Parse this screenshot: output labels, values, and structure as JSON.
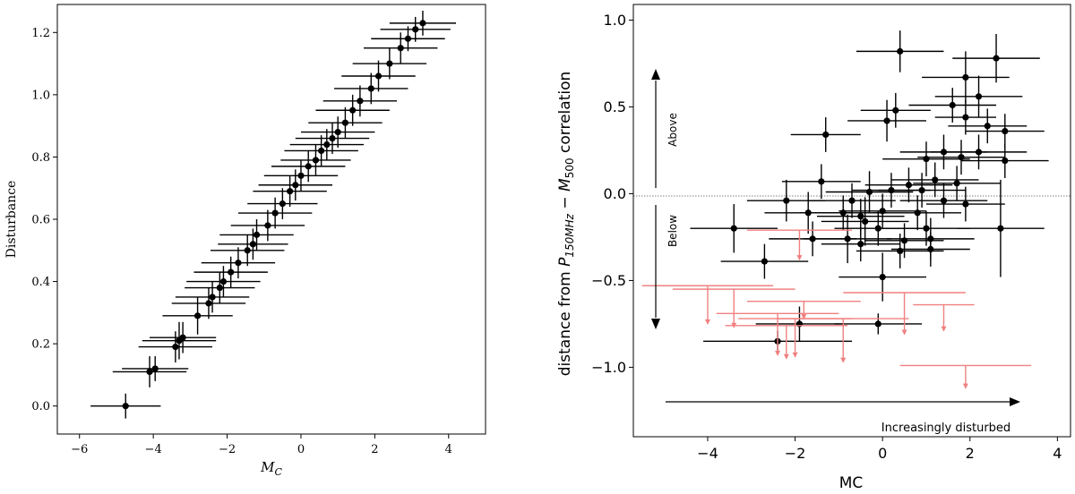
{
  "chart_data": [
    {
      "type": "scatter",
      "xlabel": "M",
      "xlabel_sub": "C",
      "ylabel": "Disturbance",
      "xlim": [
        -6.6,
        5.0
      ],
      "ylim": [
        -0.09,
        1.29
      ],
      "xticks": [
        "−6",
        "−4",
        "−2",
        "0",
        "2",
        "4"
      ],
      "xtick_values": [
        -6,
        -4,
        -2,
        0,
        2,
        4
      ],
      "yticks": [
        "0.0",
        "0.2",
        "0.4",
        "0.6",
        "0.8",
        "1.0",
        "1.2"
      ],
      "ytick_values": [
        0.0,
        0.2,
        0.4,
        0.6,
        0.8,
        1.0,
        1.2
      ],
      "grid": false,
      "series": [
        {
          "color": "#000000",
          "points": [
            {
              "x": -4.75,
              "y": 0.0,
              "xerr": 0.95,
              "yerr": 0.04
            },
            {
              "x": -4.1,
              "y": 0.11,
              "xerr": 1.0,
              "yerr": 0.05
            },
            {
              "x": -3.95,
              "y": 0.12,
              "xerr": 0.9,
              "yerr": 0.04
            },
            {
              "x": -3.4,
              "y": 0.19,
              "xerr": 1.0,
              "yerr": 0.05
            },
            {
              "x": -3.3,
              "y": 0.21,
              "xerr": 1.0,
              "yerr": 0.06
            },
            {
              "x": -3.2,
              "y": 0.22,
              "xerr": 0.9,
              "yerr": 0.05
            },
            {
              "x": -2.8,
              "y": 0.29,
              "xerr": 0.95,
              "yerr": 0.06
            },
            {
              "x": -2.5,
              "y": 0.33,
              "xerr": 1.0,
              "yerr": 0.05
            },
            {
              "x": -2.4,
              "y": 0.35,
              "xerr": 1.0,
              "yerr": 0.05
            },
            {
              "x": -2.2,
              "y": 0.38,
              "xerr": 0.95,
              "yerr": 0.05
            },
            {
              "x": -2.1,
              "y": 0.4,
              "xerr": 1.0,
              "yerr": 0.05
            },
            {
              "x": -1.9,
              "y": 0.43,
              "xerr": 1.0,
              "yerr": 0.05
            },
            {
              "x": -1.7,
              "y": 0.46,
              "xerr": 1.0,
              "yerr": 0.05
            },
            {
              "x": -1.45,
              "y": 0.5,
              "xerr": 1.0,
              "yerr": 0.05
            },
            {
              "x": -1.3,
              "y": 0.52,
              "xerr": 0.95,
              "yerr": 0.05
            },
            {
              "x": -1.2,
              "y": 0.55,
              "xerr": 1.0,
              "yerr": 0.05
            },
            {
              "x": -0.9,
              "y": 0.58,
              "xerr": 1.0,
              "yerr": 0.05
            },
            {
              "x": -0.7,
              "y": 0.62,
              "xerr": 1.0,
              "yerr": 0.05
            },
            {
              "x": -0.5,
              "y": 0.65,
              "xerr": 0.95,
              "yerr": 0.05
            },
            {
              "x": -0.3,
              "y": 0.69,
              "xerr": 1.0,
              "yerr": 0.05
            },
            {
              "x": -0.15,
              "y": 0.71,
              "xerr": 1.0,
              "yerr": 0.05
            },
            {
              "x": 0.0,
              "y": 0.74,
              "xerr": 1.0,
              "yerr": 0.05
            },
            {
              "x": 0.2,
              "y": 0.77,
              "xerr": 1.0,
              "yerr": 0.05
            },
            {
              "x": 0.4,
              "y": 0.79,
              "xerr": 0.95,
              "yerr": 0.05
            },
            {
              "x": 0.55,
              "y": 0.82,
              "xerr": 1.0,
              "yerr": 0.05
            },
            {
              "x": 0.7,
              "y": 0.84,
              "xerr": 1.0,
              "yerr": 0.05
            },
            {
              "x": 0.85,
              "y": 0.86,
              "xerr": 1.0,
              "yerr": 0.05
            },
            {
              "x": 1.0,
              "y": 0.88,
              "xerr": 1.0,
              "yerr": 0.05
            },
            {
              "x": 1.2,
              "y": 0.91,
              "xerr": 1.0,
              "yerr": 0.05
            },
            {
              "x": 1.4,
              "y": 0.95,
              "xerr": 1.0,
              "yerr": 0.05
            },
            {
              "x": 1.6,
              "y": 0.98,
              "xerr": 1.0,
              "yerr": 0.05
            },
            {
              "x": 1.9,
              "y": 1.02,
              "xerr": 1.0,
              "yerr": 0.05
            },
            {
              "x": 2.1,
              "y": 1.06,
              "xerr": 1.0,
              "yerr": 0.05
            },
            {
              "x": 2.4,
              "y": 1.1,
              "xerr": 1.0,
              "yerr": 0.05
            },
            {
              "x": 2.7,
              "y": 1.15,
              "xerr": 1.0,
              "yerr": 0.05
            },
            {
              "x": 2.9,
              "y": 1.18,
              "xerr": 1.0,
              "yerr": 0.04
            },
            {
              "x": 3.1,
              "y": 1.21,
              "xerr": 0.95,
              "yerr": 0.04
            },
            {
              "x": 3.3,
              "y": 1.23,
              "xerr": 0.9,
              "yerr": 0.04
            }
          ]
        }
      ]
    },
    {
      "type": "scatter",
      "xlabel": "MC",
      "ylabel_prefix": "distance from ",
      "ylabel_p": "P",
      "ylabel_p_sub": "150MHz",
      "ylabel_mid": " − ",
      "ylabel_m": "M",
      "ylabel_m_sub": "500",
      "ylabel_suffix": " correlation",
      "xlim": [
        -5.7,
        4.3
      ],
      "ylim": [
        -1.4,
        1.09
      ],
      "xticks": [
        "−4",
        "−2",
        "0",
        "2",
        "4"
      ],
      "xtick_values": [
        -4,
        -2,
        0,
        2,
        4
      ],
      "yticks": [
        "−1.0",
        "−0.5",
        "0.0",
        "0.5",
        "1.0"
      ],
      "ytick_values": [
        -1.0,
        -0.5,
        0.0,
        0.5,
        1.0
      ],
      "grid": false,
      "zero_line": true,
      "annotations": {
        "above": "Above",
        "below": "Below",
        "disturbed": "Increasingly disturbed"
      },
      "series": [
        {
          "kind": "detections",
          "color": "#000000",
          "points": [
            {
              "x": 0.4,
              "y": 0.82,
              "xerr": 1.0,
              "yerr": 0.12
            },
            {
              "x": 2.6,
              "y": 0.78,
              "xerr": 1.0,
              "yerr": 0.14
            },
            {
              "x": 1.9,
              "y": 0.67,
              "xerr": 1.0,
              "yerr": 0.15
            },
            {
              "x": 2.2,
              "y": 0.56,
              "xerr": 1.0,
              "yerr": 0.12
            },
            {
              "x": 1.6,
              "y": 0.51,
              "xerr": 1.0,
              "yerr": 0.1
            },
            {
              "x": 0.3,
              "y": 0.48,
              "xerr": 0.8,
              "yerr": 0.1
            },
            {
              "x": 0.1,
              "y": 0.42,
              "xerr": 0.9,
              "yerr": 0.12
            },
            {
              "x": 1.9,
              "y": 0.44,
              "xerr": 0.7,
              "yerr": 0.1
            },
            {
              "x": 2.4,
              "y": 0.39,
              "xerr": 0.9,
              "yerr": 0.1
            },
            {
              "x": 2.8,
              "y": 0.36,
              "xerr": 0.9,
              "yerr": 0.1
            },
            {
              "x": -1.3,
              "y": 0.34,
              "xerr": 0.8,
              "yerr": 0.1
            },
            {
              "x": 1.4,
              "y": 0.24,
              "xerr": 1.0,
              "yerr": 0.1
            },
            {
              "x": 1.0,
              "y": 0.2,
              "xerr": 1.0,
              "yerr": 0.1
            },
            {
              "x": 1.8,
              "y": 0.21,
              "xerr": 1.0,
              "yerr": 0.1
            },
            {
              "x": 2.2,
              "y": 0.24,
              "xerr": 1.1,
              "yerr": 0.1
            },
            {
              "x": 2.8,
              "y": 0.19,
              "xerr": 1.0,
              "yerr": 0.1
            },
            {
              "x": -1.4,
              "y": 0.07,
              "xerr": 0.9,
              "yerr": 0.1
            },
            {
              "x": 0.6,
              "y": 0.05,
              "xerr": 1.0,
              "yerr": 0.1
            },
            {
              "x": 1.2,
              "y": 0.08,
              "xerr": 1.0,
              "yerr": 0.1
            },
            {
              "x": 1.7,
              "y": 0.06,
              "xerr": 1.0,
              "yerr": 0.1
            },
            {
              "x": 0.9,
              "y": 0.02,
              "xerr": 1.0,
              "yerr": 0.1
            },
            {
              "x": 0.2,
              "y": 0.02,
              "xerr": 0.9,
              "yerr": 0.1
            },
            {
              "x": -0.3,
              "y": 0.01,
              "xerr": 1.0,
              "yerr": 0.12
            },
            {
              "x": -2.2,
              "y": -0.04,
              "xerr": 0.9,
              "yerr": 0.12
            },
            {
              "x": -0.7,
              "y": -0.04,
              "xerr": 1.0,
              "yerr": 0.1
            },
            {
              "x": 1.4,
              "y": -0.04,
              "xerr": 1.0,
              "yerr": 0.1
            },
            {
              "x": 1.9,
              "y": -0.06,
              "xerr": 0.9,
              "yerr": 0.1
            },
            {
              "x": -1.7,
              "y": -0.11,
              "xerr": 1.0,
              "yerr": 0.12
            },
            {
              "x": -0.9,
              "y": -0.11,
              "xerr": 1.0,
              "yerr": 0.1
            },
            {
              "x": 0.0,
              "y": -0.1,
              "xerr": 1.0,
              "yerr": 0.1
            },
            {
              "x": -0.5,
              "y": -0.13,
              "xerr": 1.0,
              "yerr": 0.1
            },
            {
              "x": 0.8,
              "y": -0.11,
              "xerr": 1.0,
              "yerr": 0.1
            },
            {
              "x": -0.4,
              "y": -0.16,
              "xerr": 1.0,
              "yerr": 0.14
            },
            {
              "x": 1.0,
              "y": -0.2,
              "xerr": 1.0,
              "yerr": 0.1
            },
            {
              "x": -0.1,
              "y": -0.2,
              "xerr": 1.0,
              "yerr": 0.1
            },
            {
              "x": -3.4,
              "y": -0.2,
              "xerr": 1.0,
              "yerr": 0.14
            },
            {
              "x": 2.7,
              "y": -0.2,
              "xerr": 1.0,
              "yerr": 0.28
            },
            {
              "x": -1.6,
              "y": -0.26,
              "xerr": 1.0,
              "yerr": 0.1
            },
            {
              "x": -0.8,
              "y": -0.26,
              "xerr": 1.0,
              "yerr": 0.14
            },
            {
              "x": 1.1,
              "y": -0.26,
              "xerr": 1.0,
              "yerr": 0.12
            },
            {
              "x": 0.5,
              "y": -0.27,
              "xerr": 0.9,
              "yerr": 0.1
            },
            {
              "x": -0.5,
              "y": -0.29,
              "xerr": 0.9,
              "yerr": 0.1
            },
            {
              "x": 1.1,
              "y": -0.32,
              "xerr": 0.9,
              "yerr": 0.1
            },
            {
              "x": 0.4,
              "y": -0.33,
              "xerr": 1.0,
              "yerr": 0.1
            },
            {
              "x": -2.7,
              "y": -0.39,
              "xerr": 1.0,
              "yerr": 0.1
            },
            {
              "x": 0.0,
              "y": -0.48,
              "xerr": 1.0,
              "yerr": 0.14
            },
            {
              "x": -1.9,
              "y": -0.75,
              "xerr": 1.0,
              "yerr": 0.1
            },
            {
              "x": -0.1,
              "y": -0.75,
              "xerr": 1.0,
              "yerr": 0.06
            },
            {
              "x": -2.4,
              "y": -0.85,
              "xerr": 1.7,
              "yerr": 0.06
            }
          ]
        },
        {
          "kind": "upper_limits",
          "color": "#f08080",
          "points": [
            {
              "x": -1.9,
              "y": -0.21,
              "xerr": 1.2,
              "depth": 0.17
            },
            {
              "x": -4.0,
              "y": -0.53,
              "xerr": 1.5,
              "depth": 0.22
            },
            {
              "x": -3.4,
              "y": -0.55,
              "xerr": 1.4,
              "depth": 0.22
            },
            {
              "x": -1.8,
              "y": -0.62,
              "xerr": 1.3,
              "depth": 0.1
            },
            {
              "x": -2.4,
              "y": -0.69,
              "xerr": 1.4,
              "depth": 0.24
            },
            {
              "x": -2.0,
              "y": -0.72,
              "xerr": 1.3,
              "depth": 0.22
            },
            {
              "x": -0.9,
              "y": -0.72,
              "xerr": 1.5,
              "depth": 0.25
            },
            {
              "x": 0.5,
              "y": -0.57,
              "xerr": 1.4,
              "depth": 0.24
            },
            {
              "x": 1.4,
              "y": -0.64,
              "xerr": 0.7,
              "depth": 0.15
            },
            {
              "x": -2.2,
              "y": -0.76,
              "xerr": 1.4,
              "depth": 0.19
            },
            {
              "x": 1.9,
              "y": -0.99,
              "xerr": 1.5,
              "depth": 0.13
            }
          ]
        }
      ]
    }
  ]
}
